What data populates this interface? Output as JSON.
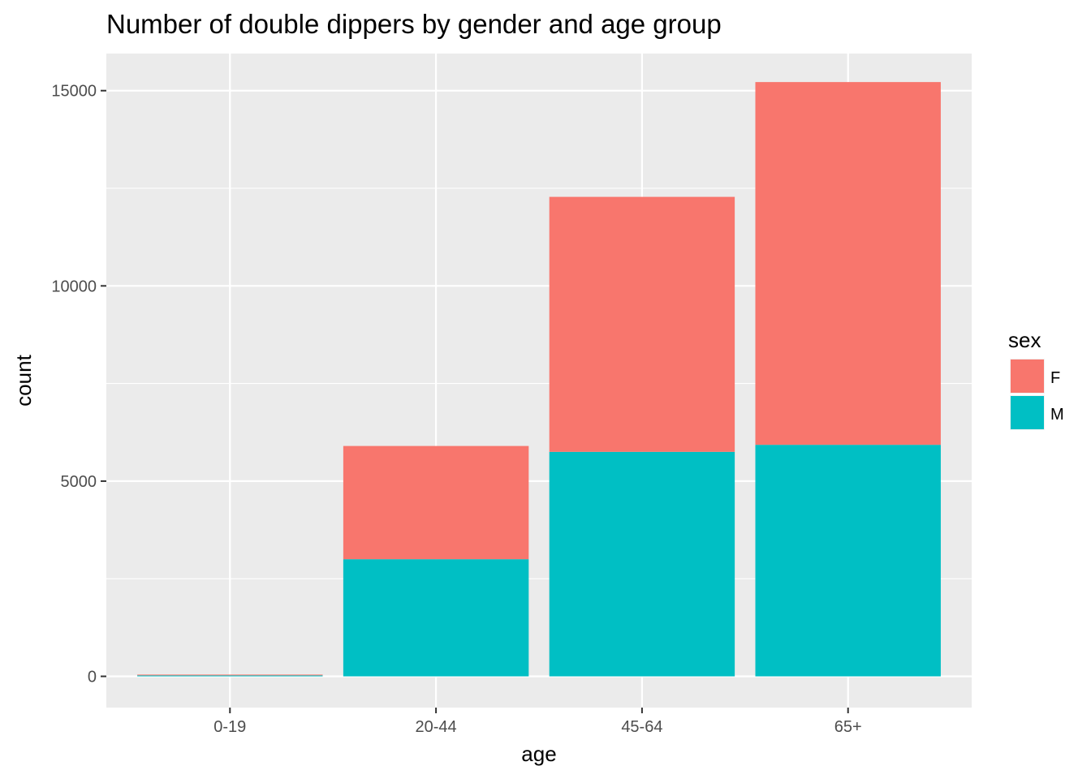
{
  "chart_data": {
    "type": "bar",
    "stacked": true,
    "title": "Number of double dippers by gender and age group",
    "xlabel": "age",
    "ylabel": "count",
    "categories": [
      "0-19",
      "20-44",
      "45-64",
      "65+"
    ],
    "series": [
      {
        "name": "M",
        "color": "#00BFC4",
        "values": [
          25,
          3000,
          5750,
          5930
        ]
      },
      {
        "name": "F",
        "color": "#F8766D",
        "values": [
          20,
          2900,
          6530,
          9290
        ]
      }
    ],
    "ylim": [
      -800,
      15950
    ],
    "yticks": [
      0,
      5000,
      10000,
      15000
    ],
    "ytick_labels": [
      "0",
      "5000",
      "10000",
      "15000"
    ],
    "grid": true,
    "legend": {
      "title": "sex",
      "placement": "right",
      "entries": [
        {
          "name": "F",
          "color": "#F8766D"
        },
        {
          "name": "M",
          "color": "#00BFC4"
        }
      ]
    },
    "panel_color": "#EBEBEB",
    "grid_color": "#FFFFFF"
  }
}
